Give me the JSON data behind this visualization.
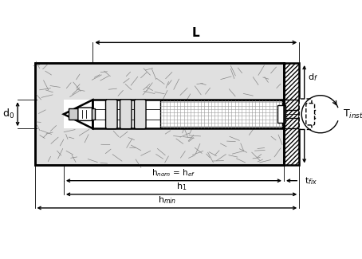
{
  "fig_width": 4.54,
  "fig_height": 3.25,
  "dpi": 100,
  "bg_color": "#ffffff",
  "line_color": "#000000",
  "concrete_bg": "#e0e0e0",
  "labels": {
    "L": "L",
    "df": "d$_f$",
    "d0": "d$_0$",
    "Tinst": "T$_{inst}$",
    "hnom": "h$_{nom}$ = h$_{ef}$",
    "h1": "h$_1$",
    "hmin": "h$_{min}$",
    "tfix": "t$_{fix}$"
  },
  "font_size": 8,
  "lw": 1.0,
  "lw_thin": 0.6,
  "lw_thick": 1.8,
  "xlim": [
    0,
    10
  ],
  "ylim": [
    0,
    7.2
  ]
}
